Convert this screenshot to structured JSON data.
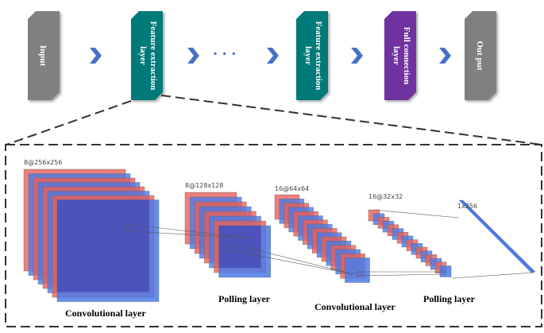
{
  "pipeline": {
    "blocks": [
      {
        "label": "Input",
        "color": "#808080"
      },
      {
        "label": "Feature extraction layer",
        "line1": "Feature extraction",
        "line2": "layer",
        "color": "#007a78"
      },
      {
        "label": "Feature extraction layer",
        "line1": "Feature extraction",
        "line2": "layer",
        "color": "#007a78"
      },
      {
        "label": "Full connection layer",
        "line1": "Full connection",
        "line2": "layer",
        "color": "#7030a0"
      },
      {
        "label": "Out put",
        "color": "#808080"
      }
    ],
    "ellipsis": "· · ·",
    "arrow_color": "#4472c4"
  },
  "detail": {
    "stacks": [
      {
        "dims": "8@256x256",
        "count": 8
      },
      {
        "dims": "8@128x128",
        "count": 8
      },
      {
        "dims": "16@64x64",
        "count": 16
      },
      {
        "dims": "16@32x32",
        "count": 16
      },
      {
        "dims": "1x256",
        "count": 1
      }
    ],
    "labels": [
      "Convolutional layer",
      "Polling layer",
      "Convolutional layer",
      "Polling layer"
    ],
    "colors": {
      "red": "#e8605a",
      "blue": "#4a7be8"
    }
  }
}
